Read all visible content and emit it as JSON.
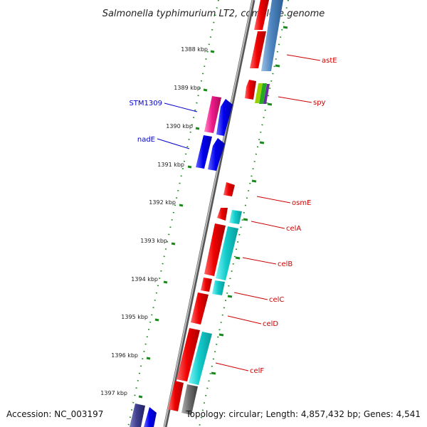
{
  "title": "Salmonella typhimurium LT2, complete genome",
  "accession": "Accession: NC_003197",
  "topology": "Topology: circular; Length: 4,857,432 bp; Genes: 4,541",
  "colors": {
    "forward_strand_label": "#0000cc",
    "reverse_strand_label": "#cc0000",
    "tick_green": "#1a8a1a",
    "backbone": "#888888"
  },
  "ticks": [
    {
      "label": "1388 kbp"
    },
    {
      "label": "1389 kbp"
    },
    {
      "label": "1390 kbp"
    },
    {
      "label": "1391 kbp"
    },
    {
      "label": "1392 kbp"
    },
    {
      "label": "1393 kbp"
    },
    {
      "label": "1394 kbp"
    },
    {
      "label": "1395 kbp"
    },
    {
      "label": "1396 kbp"
    },
    {
      "label": "1397 kbp"
    }
  ],
  "gene_labels_forward": [
    {
      "name": "STM1309"
    },
    {
      "name": "nadE"
    }
  ],
  "gene_labels_reverse": [
    {
      "name": "astE"
    },
    {
      "name": "spy"
    },
    {
      "name": "osmE"
    },
    {
      "name": "celA"
    },
    {
      "name": "celB"
    },
    {
      "name": "celC"
    },
    {
      "name": "celD"
    },
    {
      "name": "celF"
    }
  ]
}
